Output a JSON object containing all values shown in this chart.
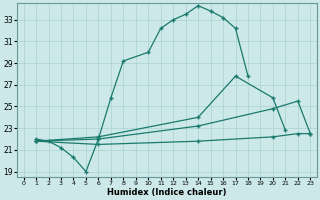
{
  "xlabel": "Humidex (Indice chaleur)",
  "ylabel": "",
  "background_color": "#cce8e8",
  "grid_color": "#b0d4d4",
  "line_color": "#1a7a6e",
  "xlim": [
    -0.5,
    23.5
  ],
  "ylim": [
    18.5,
    34.5
  ],
  "xticks": [
    0,
    1,
    2,
    3,
    4,
    5,
    6,
    7,
    8,
    9,
    10,
    11,
    12,
    13,
    14,
    15,
    16,
    17,
    18,
    19,
    20,
    21,
    22,
    23
  ],
  "yticks": [
    19,
    21,
    23,
    25,
    27,
    29,
    31,
    33
  ],
  "curve1_x": [
    1,
    2,
    3,
    4,
    5,
    6,
    7,
    8,
    10,
    11,
    12,
    13,
    14,
    15,
    16,
    17,
    18
  ],
  "curve1_y": [
    22,
    21.8,
    21.2,
    20.3,
    19.0,
    22.0,
    25.8,
    29.2,
    30.0,
    32.2,
    33.0,
    33.5,
    34.3,
    33.8,
    33.2,
    32.2,
    27.8
  ],
  "curve2_x": [
    1,
    6,
    14,
    17,
    20,
    21
  ],
  "curve2_y": [
    21.8,
    22.2,
    24.0,
    27.8,
    25.8,
    22.8
  ],
  "curve3_x": [
    1,
    6,
    14,
    20,
    22,
    23
  ],
  "curve3_y": [
    21.8,
    22.0,
    23.2,
    24.8,
    25.5,
    22.5
  ],
  "curve4_x": [
    1,
    6,
    14,
    20,
    22,
    23
  ],
  "curve4_y": [
    21.8,
    21.5,
    21.8,
    22.2,
    22.5,
    22.5
  ]
}
